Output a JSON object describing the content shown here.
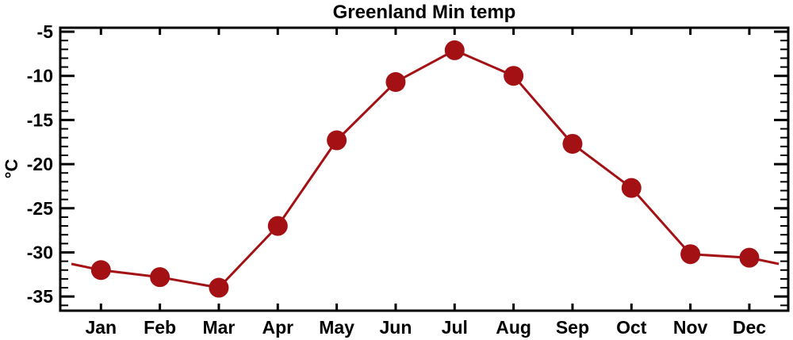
{
  "chart_data": {
    "type": "line",
    "title": "Greenland Min temp",
    "ylabel": "°C",
    "categories": [
      "Jan",
      "Feb",
      "Mar",
      "Apr",
      "May",
      "Jun",
      "Jul",
      "Aug",
      "Sep",
      "Oct",
      "Nov",
      "Dec"
    ],
    "x": [
      1,
      2,
      3,
      4,
      5,
      6,
      7,
      8,
      9,
      10,
      11,
      12
    ],
    "values": [
      -32.0,
      -32.8,
      -34.0,
      -27.0,
      -17.3,
      -10.7,
      -7.1,
      -10.0,
      -17.7,
      -22.7,
      -30.2,
      -30.6
    ],
    "edge_points": [
      {
        "x": 0.5,
        "value": -31.3
      },
      {
        "x": 12.5,
        "value": -31.3
      }
    ],
    "xlim": [
      0.31,
      12.66
    ],
    "ylim": [
      -36.6,
      -4.55
    ],
    "y_major_ticks": [
      -5,
      -10,
      -15,
      -20,
      -25,
      -30,
      -35
    ],
    "y_tick_labels": [
      "-5",
      "-10",
      "-15",
      "-20",
      "-25",
      "-30",
      "-35"
    ],
    "y_minor_step": 1,
    "grid": false,
    "legend": false,
    "marker": "filled-circle",
    "marker_radius_px": 12.5,
    "line_color": "#a41115",
    "marker_color": "#a41115",
    "axis_color": "#000000",
    "text_color": "#000000",
    "background_color": "#ffffff"
  }
}
